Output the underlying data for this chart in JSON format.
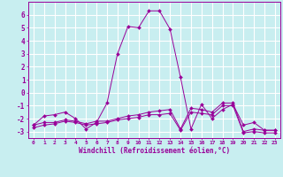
{
  "background_color": "#c8eef0",
  "grid_color": "#ffffff",
  "line_color": "#990099",
  "xlabel": "Windchill (Refroidissement éolien,°C)",
  "xlim": [
    -0.5,
    23.5
  ],
  "ylim": [
    -3.5,
    7.0
  ],
  "yticks": [
    -3,
    -2,
    -1,
    0,
    1,
    2,
    3,
    4,
    5,
    6
  ],
  "xtick_labels": [
    "0",
    "1",
    "2",
    "3",
    "4",
    "5",
    "6",
    "7",
    "8",
    "9",
    "10",
    "11",
    "12",
    "13",
    "14",
    "15",
    "16",
    "17",
    "18",
    "19",
    "20",
    "21",
    "22",
    "23"
  ],
  "series1": [
    [
      0,
      -2.5
    ],
    [
      1,
      -1.8
    ],
    [
      2,
      -1.7
    ],
    [
      3,
      -1.5
    ],
    [
      4,
      -2.0
    ],
    [
      5,
      -2.8
    ],
    [
      6,
      -2.3
    ],
    [
      7,
      -0.8
    ],
    [
      8,
      3.0
    ],
    [
      9,
      5.1
    ],
    [
      10,
      5.0
    ],
    [
      11,
      6.3
    ],
    [
      12,
      6.3
    ],
    [
      13,
      4.9
    ],
    [
      14,
      1.2
    ],
    [
      15,
      -2.8
    ],
    [
      16,
      -0.9
    ],
    [
      17,
      -2.0
    ],
    [
      18,
      -1.3
    ],
    [
      19,
      -0.9
    ],
    [
      20,
      -2.5
    ],
    [
      21,
      -2.3
    ],
    [
      22,
      -2.9
    ],
    [
      23,
      -2.9
    ]
  ],
  "series2": [
    [
      0,
      -2.5
    ],
    [
      1,
      -2.3
    ],
    [
      2,
      -2.3
    ],
    [
      3,
      -2.1
    ],
    [
      4,
      -2.2
    ],
    [
      5,
      -2.4
    ],
    [
      6,
      -2.2
    ],
    [
      7,
      -2.2
    ],
    [
      8,
      -2.0
    ],
    [
      9,
      -1.8
    ],
    [
      10,
      -1.7
    ],
    [
      11,
      -1.5
    ],
    [
      12,
      -1.4
    ],
    [
      13,
      -1.3
    ],
    [
      14,
      -2.8
    ],
    [
      15,
      -1.2
    ],
    [
      16,
      -1.3
    ],
    [
      17,
      -1.5
    ],
    [
      18,
      -0.8
    ],
    [
      19,
      -0.8
    ],
    [
      20,
      -3.0
    ],
    [
      21,
      -2.8
    ],
    [
      22,
      -2.9
    ],
    [
      23,
      -2.9
    ]
  ],
  "series3": [
    [
      0,
      -2.7
    ],
    [
      1,
      -2.5
    ],
    [
      2,
      -2.4
    ],
    [
      3,
      -2.2
    ],
    [
      4,
      -2.3
    ],
    [
      5,
      -2.5
    ],
    [
      6,
      -2.4
    ],
    [
      7,
      -2.3
    ],
    [
      8,
      -2.1
    ],
    [
      9,
      -2.0
    ],
    [
      10,
      -1.9
    ],
    [
      11,
      -1.7
    ],
    [
      12,
      -1.7
    ],
    [
      13,
      -1.6
    ],
    [
      14,
      -2.9
    ],
    [
      15,
      -1.5
    ],
    [
      16,
      -1.6
    ],
    [
      17,
      -1.7
    ],
    [
      18,
      -1.0
    ],
    [
      19,
      -1.0
    ],
    [
      20,
      -3.1
    ],
    [
      21,
      -3.0
    ],
    [
      22,
      -3.1
    ],
    [
      23,
      -3.1
    ]
  ]
}
